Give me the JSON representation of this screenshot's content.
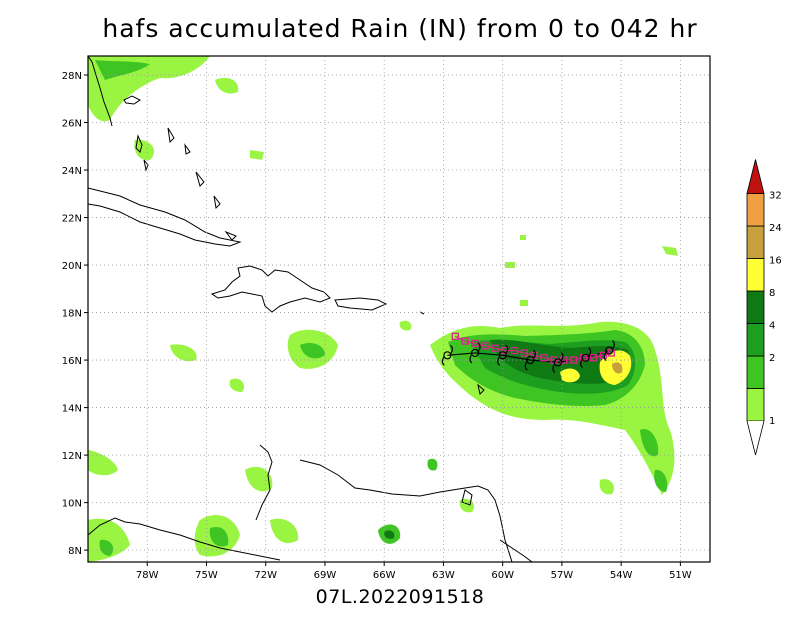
{
  "title": "hafs accumulated Rain (IN) from 0 to 042 hr",
  "footer": "07L.2022091518",
  "map": {
    "lon_min": -81,
    "lon_max": -49.5,
    "lat_min": 7.5,
    "lat_max": 28.8,
    "lon_ticks": [
      {
        "v": -78,
        "label": "78W"
      },
      {
        "v": -75,
        "label": "75W"
      },
      {
        "v": -72,
        "label": "72W"
      },
      {
        "v": -69,
        "label": "69W"
      },
      {
        "v": -66,
        "label": "66W"
      },
      {
        "v": -63,
        "label": "63W"
      },
      {
        "v": -60,
        "label": "60W"
      },
      {
        "v": -57,
        "label": "57W"
      },
      {
        "v": -54,
        "label": "54W"
      },
      {
        "v": -51,
        "label": "51W"
      }
    ],
    "lat_ticks": [
      {
        "v": 8,
        "label": "8N"
      },
      {
        "v": 10,
        "label": "10N"
      },
      {
        "v": 12,
        "label": "12N"
      },
      {
        "v": 14,
        "label": "14N"
      },
      {
        "v": 16,
        "label": "16N"
      },
      {
        "v": 18,
        "label": "18N"
      },
      {
        "v": 20,
        "label": "20N"
      },
      {
        "v": 22,
        "label": "22N"
      },
      {
        "v": 24,
        "label": "24N"
      },
      {
        "v": 26,
        "label": "26N"
      },
      {
        "v": 28,
        "label": "28N"
      }
    ]
  },
  "legend": {
    "levels": [
      {
        "label": "1",
        "color": "#9af542"
      },
      {
        "label": "2",
        "color": "#3ec423"
      },
      {
        "label": "4",
        "color": "#1e9e1e"
      },
      {
        "label": "8",
        "color": "#0f7a14"
      },
      {
        "label": "16",
        "color": "#ffff33"
      },
      {
        "label": "24",
        "color": "#c8a03c"
      },
      {
        "label": "32",
        "color": "#f0a040"
      }
    ],
    "top_color": "#c01010"
  },
  "track": {
    "model_color": "#000000",
    "obs_color": "#e0208c",
    "model_points": [
      {
        "lon": -62.8,
        "lat": 16.2
      },
      {
        "lon": -61.4,
        "lat": 16.3
      },
      {
        "lon": -60.0,
        "lat": 16.2
      },
      {
        "lon": -58.6,
        "lat": 16.0
      },
      {
        "lon": -57.2,
        "lat": 15.9
      },
      {
        "lon": -55.8,
        "lat": 16.1
      },
      {
        "lon": -54.6,
        "lat": 16.4
      }
    ],
    "obs_points": [
      {
        "lon": -62.4,
        "lat": 17.0
      },
      {
        "lon": -61.9,
        "lat": 16.8
      },
      {
        "lon": -61.4,
        "lat": 16.7
      },
      {
        "lon": -60.9,
        "lat": 16.6
      },
      {
        "lon": -60.4,
        "lat": 16.5
      },
      {
        "lon": -59.9,
        "lat": 16.4
      },
      {
        "lon": -59.4,
        "lat": 16.4
      },
      {
        "lon": -58.9,
        "lat": 16.3
      },
      {
        "lon": -58.4,
        "lat": 16.2
      },
      {
        "lon": -57.9,
        "lat": 16.1
      },
      {
        "lon": -57.4,
        "lat": 16.0
      },
      {
        "lon": -56.9,
        "lat": 16.0
      },
      {
        "lon": -56.4,
        "lat": 16.0
      },
      {
        "lon": -55.9,
        "lat": 16.1
      },
      {
        "lon": -55.4,
        "lat": 16.1
      },
      {
        "lon": -54.9,
        "lat": 16.2
      },
      {
        "lon": -54.5,
        "lat": 16.3
      }
    ]
  }
}
